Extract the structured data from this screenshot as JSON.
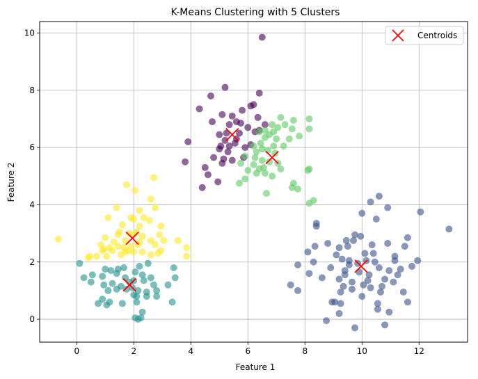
{
  "chart_data": {
    "type": "scatter",
    "title": "K-Means Clustering with 5 Clusters",
    "xlabel": "Feature 1",
    "ylabel": "Feature 2",
    "xlim": [
      -1.3,
      13.7
    ],
    "ylim": [
      -0.8,
      10.4
    ],
    "xticks": [
      0,
      2,
      4,
      6,
      8,
      10,
      12
    ],
    "yticks": [
      0,
      2,
      4,
      6,
      8,
      10
    ],
    "grid": true,
    "legend_placement": "top-right",
    "series": [
      {
        "cluster": 0,
        "color": "#440154",
        "points": [
          [
            5.2,
            8.1
          ],
          [
            6.5,
            9.85
          ],
          [
            4.7,
            7.8
          ],
          [
            6.2,
            7.5
          ],
          [
            6.4,
            7.9
          ],
          [
            4.3,
            7.35
          ],
          [
            5.1,
            7.15
          ],
          [
            5.8,
            7.3
          ],
          [
            6.1,
            7.45
          ],
          [
            5.6,
            6.9
          ],
          [
            6.0,
            6.7
          ],
          [
            5.0,
            6.45
          ],
          [
            5.35,
            6.8
          ],
          [
            5.25,
            6.5
          ],
          [
            5.7,
            6.5
          ],
          [
            4.75,
            6.9
          ],
          [
            6.4,
            6.6
          ],
          [
            5.0,
            5.95
          ],
          [
            5.35,
            6.05
          ],
          [
            6.1,
            6.1
          ],
          [
            3.9,
            6.2
          ],
          [
            5.2,
            6.25
          ],
          [
            5.55,
            6.15
          ],
          [
            4.8,
            5.65
          ],
          [
            5.1,
            5.45
          ],
          [
            5.3,
            5.85
          ],
          [
            5.45,
            5.55
          ],
          [
            4.5,
            5.3
          ],
          [
            5.85,
            5.65
          ],
          [
            5.15,
            5.6
          ],
          [
            4.6,
            5.05
          ],
          [
            4.4,
            4.6
          ],
          [
            4.95,
            4.8
          ],
          [
            3.8,
            5.5
          ],
          [
            5.6,
            6.3
          ],
          [
            5.9,
            6.0
          ],
          [
            6.25,
            6.55
          ],
          [
            5.75,
            6.85
          ],
          [
            5.45,
            7.1
          ],
          [
            6.6,
            6.8
          ],
          [
            6.35,
            7.05
          ],
          [
            5.05,
            6.05
          ]
        ]
      },
      {
        "cluster": 1,
        "color": "#3b528b",
        "points": [
          [
            10.6,
            4.3
          ],
          [
            10.3,
            4.1
          ],
          [
            10.0,
            3.7
          ],
          [
            10.9,
            3.9
          ],
          [
            12.05,
            3.75
          ],
          [
            13.05,
            3.15
          ],
          [
            10.5,
            3.5
          ],
          [
            8.4,
            3.35
          ],
          [
            8.4,
            3.25
          ],
          [
            9.75,
            2.95
          ],
          [
            9.95,
            2.9
          ],
          [
            9.45,
            2.75
          ],
          [
            9.5,
            2.55
          ],
          [
            9.7,
            2.75
          ],
          [
            10.35,
            2.6
          ],
          [
            10.9,
            2.65
          ],
          [
            11.6,
            2.85
          ],
          [
            8.35,
            2.55
          ],
          [
            8.8,
            2.65
          ],
          [
            9.2,
            2.5
          ],
          [
            10.1,
            2.3
          ],
          [
            10.4,
            2.3
          ],
          [
            11.5,
            2.55
          ],
          [
            8.1,
            2.35
          ],
          [
            9.1,
            2.25
          ],
          [
            9.3,
            2.1
          ],
          [
            9.55,
            2.05
          ],
          [
            10.15,
            2.05
          ],
          [
            10.45,
            2.0
          ],
          [
            11.15,
            2.2
          ],
          [
            11.15,
            2.05
          ],
          [
            11.95,
            2.05
          ],
          [
            7.75,
            1.9
          ],
          [
            8.3,
            2.0
          ],
          [
            8.9,
            1.8
          ],
          [
            9.4,
            1.7
          ],
          [
            9.9,
            1.65
          ],
          [
            10.6,
            1.8
          ],
          [
            10.95,
            1.7
          ],
          [
            11.35,
            1.75
          ],
          [
            11.75,
            1.85
          ],
          [
            8.15,
            1.6
          ],
          [
            8.6,
            1.45
          ],
          [
            9.2,
            1.4
          ],
          [
            9.65,
            1.3
          ],
          [
            10.2,
            1.35
          ],
          [
            10.8,
            1.4
          ],
          [
            11.25,
            1.55
          ],
          [
            7.5,
            1.2
          ],
          [
            9.35,
            1.15
          ],
          [
            9.65,
            1.05
          ],
          [
            10.3,
            1.1
          ],
          [
            10.7,
            1.15
          ],
          [
            11.1,
            1.3
          ],
          [
            11.45,
            0.95
          ],
          [
            7.75,
            1.0
          ],
          [
            9.25,
            0.95
          ],
          [
            10.0,
            0.8
          ],
          [
            10.65,
            0.95
          ],
          [
            9.05,
            0.6
          ],
          [
            8.95,
            0.6
          ],
          [
            9.25,
            0.55
          ],
          [
            10.55,
            0.55
          ],
          [
            11.6,
            0.6
          ],
          [
            9.2,
            0.2
          ],
          [
            10.55,
            0.35
          ],
          [
            10.95,
            0.25
          ],
          [
            8.75,
            -0.05
          ],
          [
            9.75,
            -0.3
          ],
          [
            10.8,
            -0.2
          ],
          [
            9.85,
            1.95
          ],
          [
            10.25,
            1.55
          ],
          [
            9.55,
            1.9
          ],
          [
            10.05,
            1.2
          ],
          [
            9.4,
            1.55
          ]
        ]
      },
      {
        "cluster": 2,
        "color": "#21918c",
        "points": [
          [
            0.1,
            1.95
          ],
          [
            1.0,
            1.75
          ],
          [
            1.2,
            1.7
          ],
          [
            1.45,
            1.75
          ],
          [
            1.65,
            1.8
          ],
          [
            2.2,
            1.85
          ],
          [
            2.5,
            1.95
          ],
          [
            3.4,
            1.8
          ],
          [
            0.55,
            1.55
          ],
          [
            0.9,
            1.5
          ],
          [
            1.4,
            1.6
          ],
          [
            1.7,
            1.45
          ],
          [
            2.05,
            1.65
          ],
          [
            2.3,
            1.55
          ],
          [
            2.6,
            1.45
          ],
          [
            3.45,
            1.45
          ],
          [
            0.25,
            1.45
          ],
          [
            0.5,
            1.3
          ],
          [
            0.95,
            1.2
          ],
          [
            1.25,
            1.25
          ],
          [
            1.55,
            1.15
          ],
          [
            1.85,
            1.3
          ],
          [
            2.0,
            1.35
          ],
          [
            2.35,
            1.35
          ],
          [
            2.7,
            1.2
          ],
          [
            3.2,
            1.2
          ],
          [
            1.1,
            1.0
          ],
          [
            1.4,
            1.05
          ],
          [
            1.75,
            1.05
          ],
          [
            2.15,
            1.0
          ],
          [
            2.45,
            0.95
          ],
          [
            2.8,
            1.0
          ],
          [
            0.9,
            0.7
          ],
          [
            1.15,
            0.6
          ],
          [
            1.6,
            0.55
          ],
          [
            2.1,
            0.6
          ],
          [
            2.45,
            0.8
          ],
          [
            2.8,
            0.8
          ],
          [
            3.35,
            0.6
          ],
          [
            0.75,
            0.55
          ],
          [
            1.05,
            0.5
          ],
          [
            2.3,
            0.25
          ],
          [
            2.05,
            0.05
          ],
          [
            2.15,
            0.0
          ],
          [
            2.25,
            0.05
          ],
          [
            2.1,
            0.8
          ],
          [
            1.95,
            1.1
          ],
          [
            2.0,
            0.85
          ]
        ]
      },
      {
        "cluster": 3,
        "color": "#5ec962",
        "points": [
          [
            7.15,
            7.05
          ],
          [
            7.6,
            6.95
          ],
          [
            8.15,
            7.0
          ],
          [
            6.85,
            6.8
          ],
          [
            7.3,
            6.8
          ],
          [
            6.6,
            6.6
          ],
          [
            6.9,
            6.55
          ],
          [
            7.05,
            6.7
          ],
          [
            7.55,
            6.65
          ],
          [
            8.15,
            6.65
          ],
          [
            6.4,
            6.55
          ],
          [
            6.6,
            6.35
          ],
          [
            6.75,
            6.45
          ],
          [
            7.0,
            6.3
          ],
          [
            7.45,
            6.3
          ],
          [
            7.8,
            6.4
          ],
          [
            6.2,
            6.05
          ],
          [
            6.45,
            6.15
          ],
          [
            6.9,
            6.05
          ],
          [
            7.25,
            6.05
          ],
          [
            6.3,
            5.85
          ],
          [
            6.5,
            5.95
          ],
          [
            6.7,
            5.9
          ],
          [
            6.95,
            5.8
          ],
          [
            5.9,
            5.7
          ],
          [
            6.25,
            5.65
          ],
          [
            6.5,
            5.55
          ],
          [
            6.75,
            5.5
          ],
          [
            7.05,
            5.45
          ],
          [
            5.75,
            5.45
          ],
          [
            6.2,
            5.4
          ],
          [
            6.4,
            5.25
          ],
          [
            6.6,
            5.1
          ],
          [
            7.15,
            5.25
          ],
          [
            6.0,
            5.2
          ],
          [
            6.3,
            5.1
          ],
          [
            6.55,
            5.3
          ],
          [
            5.9,
            4.9
          ],
          [
            5.7,
            4.75
          ],
          [
            8.1,
            5.2
          ],
          [
            8.15,
            5.25
          ],
          [
            7.6,
            4.75
          ],
          [
            7.55,
            4.6
          ],
          [
            7.75,
            4.55
          ],
          [
            8.3,
            4.15
          ],
          [
            8.15,
            4.05
          ],
          [
            6.65,
            4.4
          ],
          [
            6.85,
            5.0
          ]
        ]
      },
      {
        "cluster": 4,
        "color": "#fde725",
        "points": [
          [
            1.75,
            4.7
          ],
          [
            2.05,
            4.5
          ],
          [
            2.7,
            4.95
          ],
          [
            2.6,
            4.2
          ],
          [
            1.4,
            3.9
          ],
          [
            2.2,
            3.8
          ],
          [
            2.75,
            3.9
          ],
          [
            1.1,
            3.55
          ],
          [
            1.9,
            3.55
          ],
          [
            2.0,
            3.5
          ],
          [
            2.35,
            3.55
          ],
          [
            2.55,
            3.45
          ],
          [
            1.6,
            3.3
          ],
          [
            2.2,
            3.25
          ],
          [
            2.95,
            3.25
          ],
          [
            1.5,
            3.05
          ],
          [
            1.85,
            3.0
          ],
          [
            2.1,
            3.05
          ],
          [
            1.45,
            2.95
          ],
          [
            2.0,
            2.95
          ],
          [
            2.3,
            2.9
          ],
          [
            2.9,
            2.95
          ],
          [
            3.05,
            2.75
          ],
          [
            1.0,
            2.85
          ],
          [
            1.3,
            2.7
          ],
          [
            1.7,
            2.75
          ],
          [
            2.6,
            2.75
          ],
          [
            3.55,
            2.75
          ],
          [
            0.85,
            2.6
          ],
          [
            1.15,
            2.5
          ],
          [
            1.45,
            2.55
          ],
          [
            1.9,
            2.55
          ],
          [
            2.15,
            2.6
          ],
          [
            2.75,
            2.6
          ],
          [
            3.85,
            2.5
          ],
          [
            0.45,
            2.2
          ],
          [
            0.9,
            2.4
          ],
          [
            1.25,
            2.4
          ],
          [
            1.7,
            2.35
          ],
          [
            2.0,
            2.35
          ],
          [
            2.3,
            2.35
          ],
          [
            2.95,
            2.4
          ],
          [
            0.4,
            2.15
          ],
          [
            0.7,
            2.2
          ],
          [
            1.05,
            2.2
          ],
          [
            1.55,
            2.25
          ],
          [
            1.8,
            2.4
          ],
          [
            2.6,
            2.25
          ],
          [
            2.85,
            2.3
          ],
          [
            3.85,
            2.2
          ],
          [
            -0.65,
            2.8
          ],
          [
            0.95,
            2.45
          ],
          [
            1.65,
            2.5
          ],
          [
            2.2,
            2.7
          ]
        ]
      }
    ],
    "centroids": {
      "label": "Centroids",
      "color": "#ff0000",
      "marker": "x",
      "points": [
        [
          5.45,
          6.45
        ],
        [
          9.97,
          1.85
        ],
        [
          1.85,
          1.2
        ],
        [
          6.85,
          5.65
        ],
        [
          1.95,
          2.83
        ]
      ]
    }
  }
}
